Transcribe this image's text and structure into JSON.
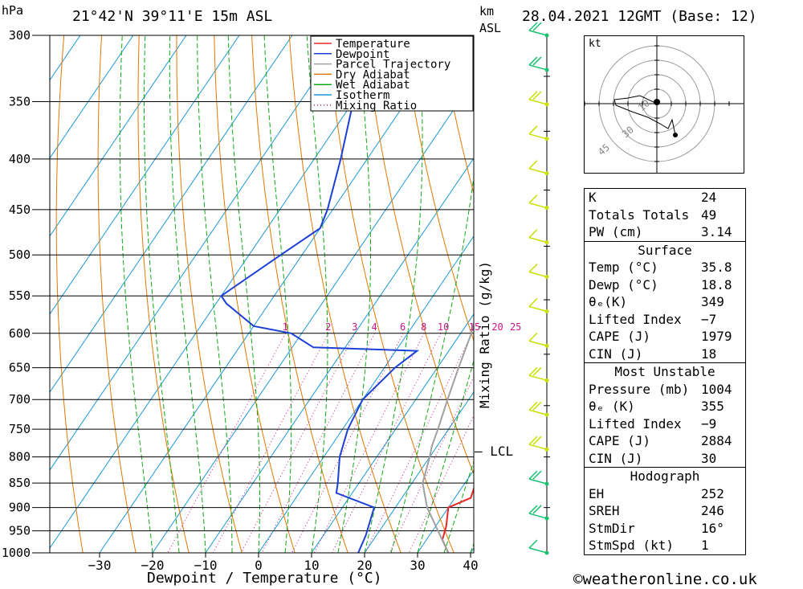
{
  "header": {
    "hpa_label": "hPa",
    "location": "21°42'N  39°11'E  15m  ASL",
    "km_label": "km",
    "asl_label": "ASL",
    "datetime": "28.04.2021  12GMT  (Base: 12)"
  },
  "axes": {
    "xlabel": "Dewpoint / Temperature (°C)",
    "ylabel_right": "Mixing Ratio (g/kg)",
    "lcl_label": "LCL",
    "hodo_unit": "kt"
  },
  "colors": {
    "temperature": "#e8282a",
    "dewpoint": "#1c3fd6",
    "parcel": "#a0a0a0",
    "dry_adiabat": "#e07800",
    "wet_adiabat": "#12a812",
    "isotherm": "#1a9ad6",
    "mixing_ratio": "#c8168a",
    "wind": "#c8e000",
    "wind_low": "#18c070"
  },
  "chart_data": {
    "type": "line",
    "pressure_levels": [
      300,
      350,
      400,
      450,
      500,
      550,
      600,
      650,
      700,
      750,
      800,
      850,
      900,
      950,
      1000
    ],
    "pressure_labels": [
      "300",
      "350",
      "400",
      "450",
      "500",
      "550",
      "600",
      "650",
      "700",
      "750",
      "800",
      "850",
      "900",
      "950",
      "1000"
    ],
    "x_ticks": [
      -30,
      -20,
      -10,
      0,
      10,
      20,
      30,
      40
    ],
    "x_tick_labels": [
      "−30",
      "−20",
      "−10",
      "0",
      "10",
      "20",
      "30",
      "40"
    ],
    "xlim": [
      -40,
      40
    ],
    "ylim": [
      1000,
      300
    ],
    "y_scale": "log",
    "skew_deg_per_100px_up": 10,
    "mixing_ratio_labels": [
      "1",
      "2",
      "3",
      "4",
      "6",
      "8",
      "10",
      "15",
      "20",
      "25"
    ],
    "mixing_ratio_values": [
      1,
      2,
      3,
      4,
      6,
      8,
      10,
      15,
      20,
      25
    ],
    "legend": [
      "Temperature",
      "Dewpoint",
      "Parcel Trajectory",
      "Dry Adiabat",
      "Wet Adiabat",
      "Isotherm",
      "Mixing Ratio"
    ],
    "legend_position": "top-right",
    "series": [
      {
        "name": "Temperature",
        "points": [
          [
            1000,
            35.8
          ],
          [
            970,
            33
          ],
          [
            940,
            32
          ],
          [
            900,
            30
          ],
          [
            880,
            33
          ],
          [
            850,
            32
          ],
          [
            800,
            30
          ],
          [
            750,
            28
          ],
          [
            700,
            25
          ],
          [
            650,
            22
          ],
          [
            620,
            21
          ],
          [
            600,
            23
          ],
          [
            560,
            22
          ],
          [
            500,
            16
          ],
          [
            450,
            8
          ],
          [
            400,
            0
          ],
          [
            350,
            -10
          ],
          [
            300,
            -22
          ]
        ]
      },
      {
        "name": "Dewpoint",
        "points": [
          [
            1000,
            18.8
          ],
          [
            960,
            18
          ],
          [
            900,
            16
          ],
          [
            870,
            7
          ],
          [
            850,
            6
          ],
          [
            800,
            3
          ],
          [
            750,
            1
          ],
          [
            700,
            0
          ],
          [
            650,
            2
          ],
          [
            625,
            4
          ],
          [
            620,
            -16
          ],
          [
            600,
            -22
          ],
          [
            590,
            -30
          ],
          [
            560,
            -38
          ],
          [
            550,
            -40
          ],
          [
            500,
            -34
          ],
          [
            470,
            -30
          ],
          [
            450,
            -31
          ],
          [
            400,
            -35
          ],
          [
            350,
            -40
          ],
          [
            300,
            -46
          ]
        ]
      },
      {
        "name": "Parcel Trajectory",
        "points": [
          [
            1000,
            35.8
          ],
          [
            900,
            26
          ],
          [
            850,
            22
          ],
          [
            800,
            20
          ],
          [
            780,
            19
          ],
          [
            750,
            18
          ],
          [
            700,
            16
          ],
          [
            650,
            14
          ],
          [
            600,
            12
          ],
          [
            550,
            9
          ],
          [
            500,
            4
          ],
          [
            450,
            -1
          ],
          [
            400,
            -8
          ],
          [
            360,
            -15
          ]
        ]
      }
    ]
  },
  "hodograph": {
    "ring_labels": [
      "10",
      "30",
      "45"
    ],
    "unit": "kt"
  },
  "wind_profile": {
    "km_ticks": [
      "1",
      "2",
      "3",
      "4",
      "5",
      "6",
      "7",
      "8",
      "9"
    ],
    "barbs_speed_kt": [
      10,
      15,
      20,
      20,
      15,
      15,
      10,
      10,
      5,
      5,
      5,
      10,
      10,
      15,
      15,
      20
    ]
  },
  "indices": {
    "rows": [
      {
        "key": "K",
        "value": "24"
      },
      {
        "key": "Totals Totals",
        "value": "49"
      },
      {
        "key": "PW (cm)",
        "value": "3.14"
      }
    ]
  },
  "surface": {
    "title": "Surface",
    "rows": [
      {
        "key": "Temp (°C)",
        "value": "35.8"
      },
      {
        "key": "Dewp (°C)",
        "value": "18.8"
      },
      {
        "key": "θₑ(K)",
        "value": "349"
      },
      {
        "key": "Lifted Index",
        "value": "−7"
      },
      {
        "key": "CAPE (J)",
        "value": "1979"
      },
      {
        "key": "CIN (J)",
        "value": "18"
      }
    ]
  },
  "most_unstable": {
    "title": "Most Unstable",
    "rows": [
      {
        "key": "Pressure (mb)",
        "value": "1004"
      },
      {
        "key": "θₑ (K)",
        "value": "355"
      },
      {
        "key": "Lifted Index",
        "value": "−9"
      },
      {
        "key": "CAPE (J)",
        "value": "2884"
      },
      {
        "key": "CIN (J)",
        "value": "30"
      }
    ]
  },
  "hodograph_table": {
    "title": "Hodograph",
    "rows": [
      {
        "key": "EH",
        "value": "252"
      },
      {
        "key": "SREH",
        "value": "246"
      },
      {
        "key": "StmDir",
        "value": "16°"
      },
      {
        "key": "StmSpd (kt)",
        "value": "1"
      }
    ]
  },
  "footer": {
    "copyright_symbol": "©",
    "site": "weatheronline.co.uk"
  }
}
